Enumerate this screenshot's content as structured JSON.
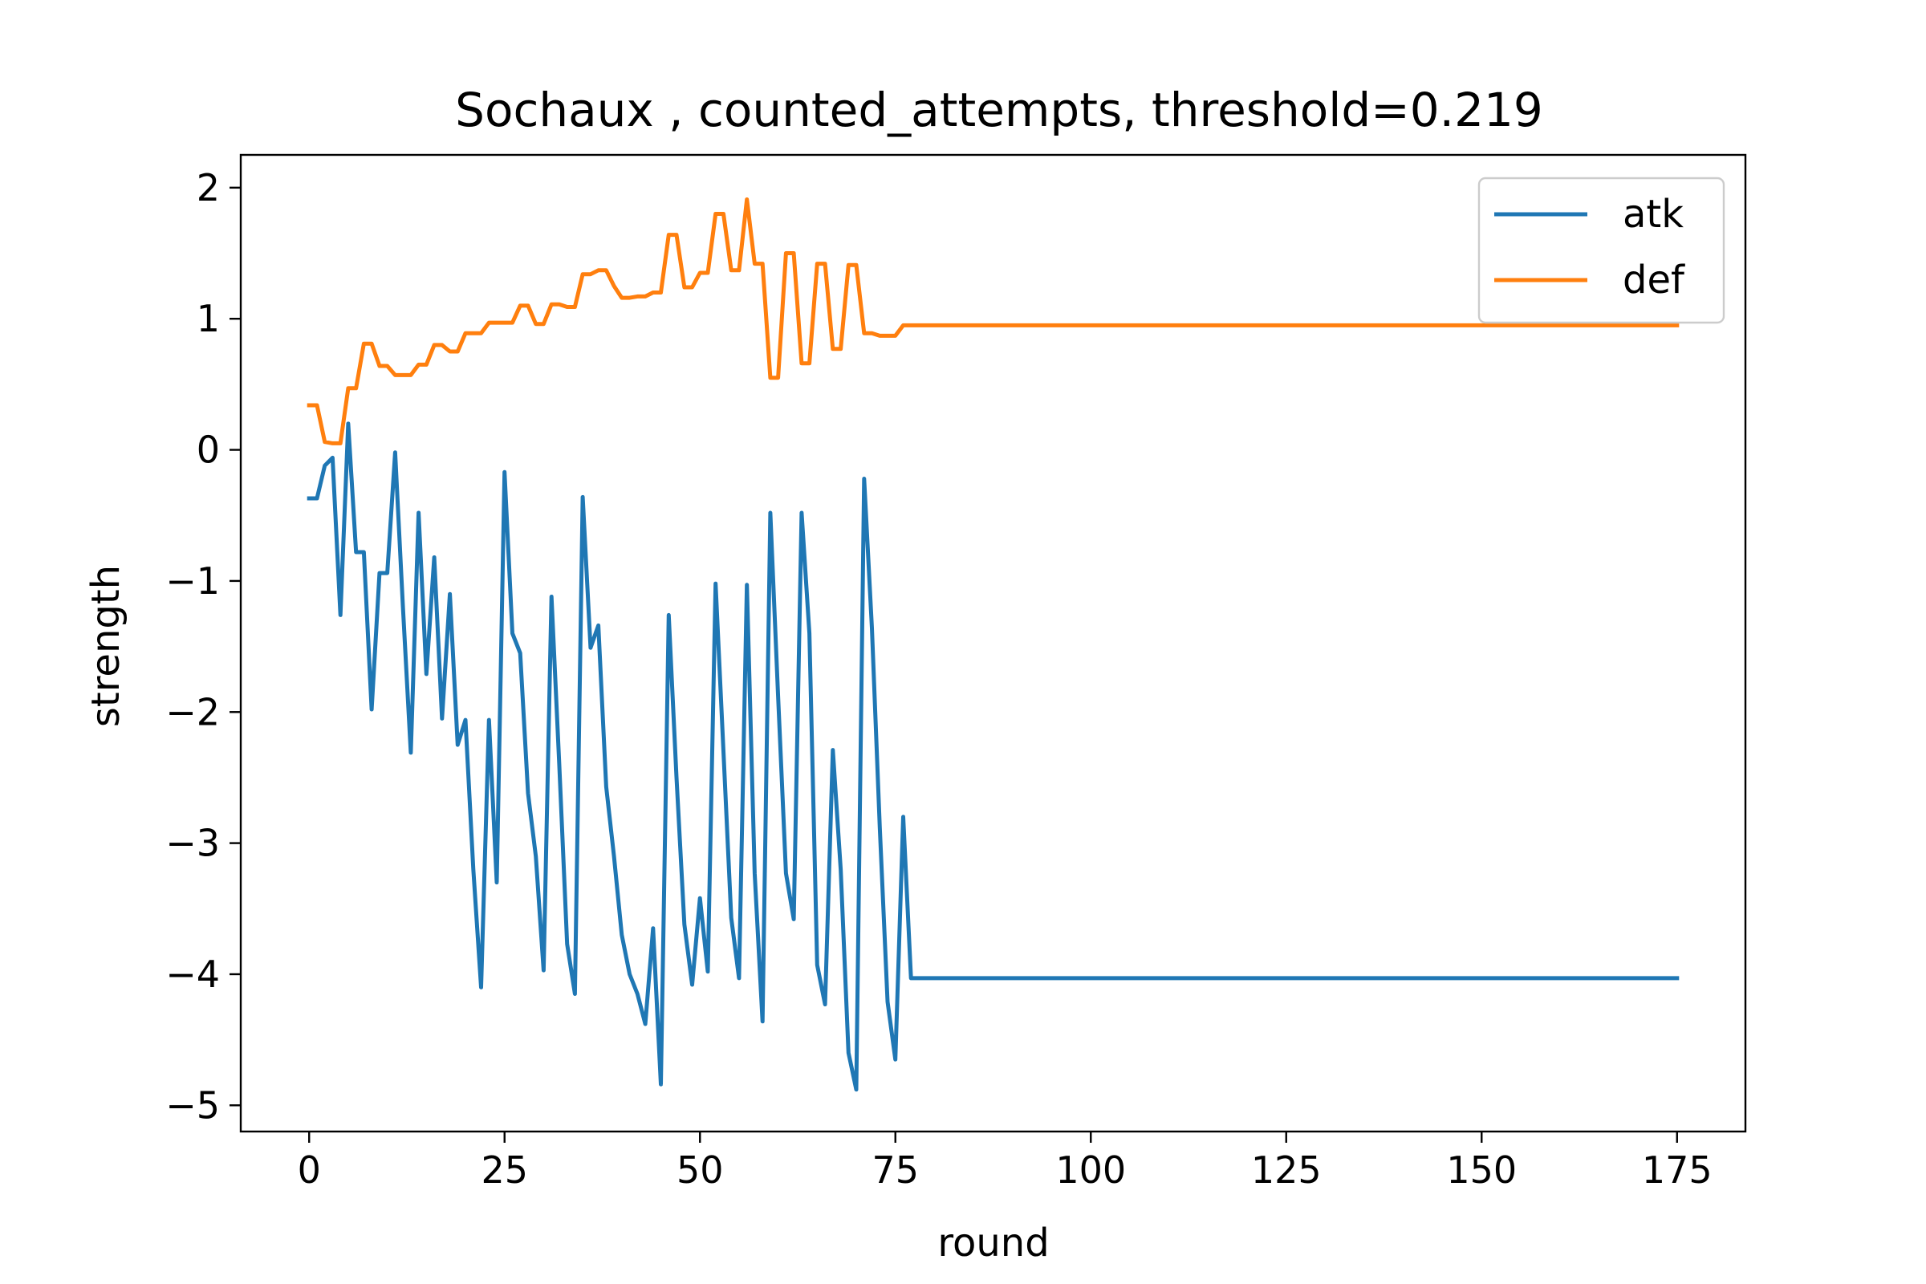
{
  "chart_data": {
    "type": "line",
    "title": "Sochaux , counted_attempts, threshold=0.219",
    "xlabel": "round",
    "ylabel": "strength",
    "xlim": [
      -8.75,
      183.75
    ],
    "ylim": [
      -5.2,
      2.25
    ],
    "xticks": [
      0,
      25,
      50,
      75,
      100,
      125,
      150,
      175
    ],
    "xtick_labels": [
      "0",
      "25",
      "50",
      "75",
      "100",
      "125",
      "150",
      "175"
    ],
    "yticks": [
      -5,
      -4,
      -3,
      -2,
      -1,
      0,
      1,
      2
    ],
    "ytick_labels": [
      "−5",
      "−4",
      "−3",
      "−2",
      "−1",
      "0",
      "1",
      "2"
    ],
    "grid": false,
    "legend_position": "top-right",
    "series": [
      {
        "name": "atk",
        "color": "#1f77b4",
        "x": [
          0,
          1,
          2,
          3,
          4,
          5,
          6,
          7,
          8,
          9,
          10,
          11,
          12,
          13,
          14,
          15,
          16,
          17,
          18,
          19,
          20,
          21,
          22,
          23,
          24,
          25,
          26,
          27,
          28,
          29,
          30,
          31,
          32,
          33,
          34,
          35,
          36,
          37,
          38,
          39,
          40,
          41,
          42,
          43,
          44,
          45,
          46,
          47,
          48,
          49,
          50,
          51,
          52,
          53,
          54,
          55,
          56,
          57,
          58,
          59,
          60,
          61,
          62,
          63,
          64,
          65,
          66,
          67,
          68,
          69,
          70,
          71,
          72,
          73,
          74,
          75,
          76,
          77,
          78,
          175
        ],
        "y": [
          -0.37,
          -0.37,
          -0.12,
          -0.06,
          -1.26,
          0.2,
          -0.78,
          -0.78,
          -1.98,
          -0.94,
          -0.94,
          -0.02,
          -1.2,
          -2.31,
          -0.48,
          -1.71,
          -0.82,
          -2.05,
          -1.1,
          -2.25,
          -2.06,
          -3.2,
          -4.1,
          -2.06,
          -3.3,
          -0.17,
          -1.4,
          -1.55,
          -2.62,
          -3.1,
          -3.97,
          -1.12,
          -2.4,
          -3.77,
          -4.15,
          -0.36,
          -1.51,
          -1.34,
          -2.57,
          -3.1,
          -3.7,
          -4.0,
          -4.15,
          -4.38,
          -3.65,
          -4.84,
          -1.26,
          -2.5,
          -3.62,
          -4.08,
          -3.42,
          -3.98,
          -1.02,
          -2.3,
          -3.57,
          -4.03,
          -1.03,
          -3.23,
          -4.36,
          -0.48,
          -1.88,
          -3.23,
          -3.58,
          -0.48,
          -1.4,
          -3.93,
          -4.23,
          -2.29,
          -3.2,
          -4.6,
          -4.88,
          -0.22,
          -1.36,
          -2.88,
          -4.21,
          -4.65,
          -2.8,
          -4.03,
          -4.03,
          -4.03
        ]
      },
      {
        "name": "def",
        "color": "#ff7f0e",
        "x": [
          0,
          1,
          2,
          3,
          4,
          5,
          6,
          7,
          8,
          9,
          10,
          11,
          12,
          13,
          14,
          15,
          16,
          17,
          18,
          19,
          20,
          21,
          22,
          23,
          24,
          25,
          26,
          27,
          28,
          29,
          30,
          31,
          32,
          33,
          34,
          35,
          36,
          37,
          38,
          39,
          40,
          41,
          42,
          43,
          44,
          45,
          46,
          47,
          48,
          49,
          50,
          51,
          52,
          53,
          54,
          55,
          56,
          57,
          58,
          59,
          60,
          61,
          62,
          63,
          64,
          65,
          66,
          67,
          68,
          69,
          70,
          71,
          72,
          73,
          74,
          75,
          76,
          77,
          175
        ],
        "y": [
          0.34,
          0.34,
          0.06,
          0.05,
          0.05,
          0.47,
          0.47,
          0.81,
          0.81,
          0.64,
          0.64,
          0.57,
          0.57,
          0.57,
          0.65,
          0.65,
          0.8,
          0.8,
          0.75,
          0.75,
          0.89,
          0.89,
          0.89,
          0.97,
          0.97,
          0.97,
          0.97,
          1.1,
          1.1,
          0.96,
          0.96,
          1.11,
          1.11,
          1.09,
          1.09,
          1.34,
          1.34,
          1.37,
          1.37,
          1.25,
          1.16,
          1.16,
          1.17,
          1.17,
          1.2,
          1.2,
          1.64,
          1.64,
          1.24,
          1.24,
          1.35,
          1.35,
          1.8,
          1.8,
          1.37,
          1.37,
          1.91,
          1.42,
          1.42,
          0.55,
          0.55,
          1.5,
          1.5,
          0.66,
          0.66,
          1.42,
          1.42,
          0.77,
          0.77,
          1.41,
          1.41,
          0.89,
          0.89,
          0.87,
          0.87,
          0.87,
          0.95,
          0.95,
          0.95
        ]
      }
    ]
  }
}
